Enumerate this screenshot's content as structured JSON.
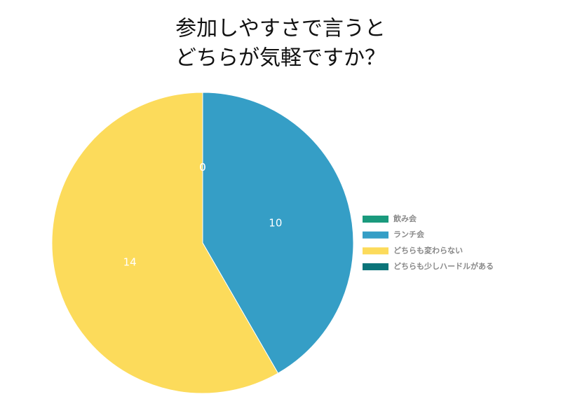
{
  "chart_data": {
    "type": "pie",
    "title": [
      "参加しやすさで言うと",
      "どちらが気軽ですか？"
    ],
    "categories": [
      "飲み会",
      "ランチ会",
      "どちらも変わらない",
      "どちらも少しハードルがある"
    ],
    "values": [
      0,
      10,
      14,
      0
    ],
    "colors": [
      "#1a9a7d",
      "#359ec6",
      "#fcdb5b",
      "#0b7479"
    ],
    "legend": "right"
  }
}
